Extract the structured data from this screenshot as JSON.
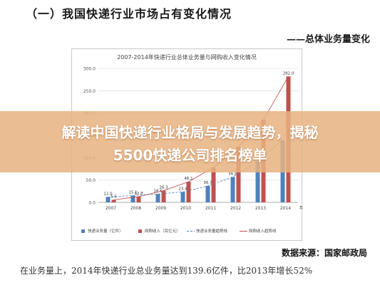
{
  "header": {
    "section_title": "（一）我国快递行业市场占有变化情况",
    "subtitle": "——总体业务量变化"
  },
  "banner": {
    "line1": "解读中国快递行业格局与发展趋势，揭秘",
    "line2": "5500快递公司排名榜单"
  },
  "source": "数据来源：国家邮政局",
  "body_text": "在业务量上，2014年快递行业总业务量达到139.6亿件，比2013年增长52%",
  "colors": {
    "volume_bar": "#4F81BD",
    "revenue_bar": "#C0504D",
    "volume_trend": "#4F81BD",
    "revenue_trend": "#C0504D",
    "banner": "#E8B280"
  },
  "chart_data": {
    "type": "bar",
    "title": "2007-2014年快递行业总体业务量与网购收入变化情况",
    "xlabel": "年份",
    "ylabel": "",
    "categories": [
      "2007",
      "2008",
      "2009",
      "2010",
      "2011",
      "2012",
      "2013",
      "2014"
    ],
    "ylim": [
      0,
      300
    ],
    "yticks": [
      "0.0",
      "50.0",
      "100.0",
      "150.0",
      "200.0",
      "250.0",
      "300.0"
    ],
    "grid": true,
    "legend_position": "bottom",
    "series": [
      {
        "name": "快递业务量（亿件）",
        "kind": "bar",
        "values": [
          12.0,
          15.1,
          18.6,
          23.4,
          36.7,
          56.8,
          91.9,
          139.6
        ],
        "labels": [
          "12.0",
          "15.1",
          "18.6",
          "23.4",
          "36.7",
          "56.8",
          "",
          ""
        ]
      },
      {
        "name": "网购收入（百亿元）",
        "kind": "bar",
        "values": [
          5.6,
          12.8,
          26.3,
          46.1,
          78.0,
          125.0,
          185.0,
          282.0
        ],
        "labels": [
          "5.6",
          "12.8",
          "26.3",
          "46.1",
          "",
          "",
          "",
          "282.0"
        ]
      },
      {
        "name": "快递业务量趋势线",
        "kind": "trend",
        "base": "快递业务量（亿件）"
      },
      {
        "name": "网购收入趋势线",
        "kind": "trend",
        "base": "网购收入（百亿元）"
      }
    ]
  }
}
